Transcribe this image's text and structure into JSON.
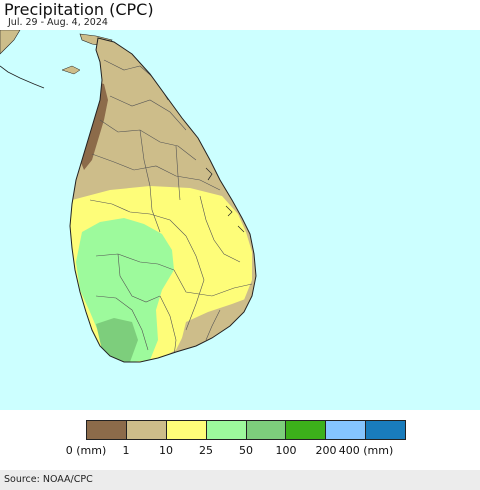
{
  "header": {
    "title": "Precipitation (CPC)",
    "subtitle": "Jul. 29 - Aug. 4, 2024"
  },
  "legend": {
    "colors": [
      "#8c6b4a",
      "#cdbd8a",
      "#fefd79",
      "#9dfa9c",
      "#7dce7c",
      "#3cb01a",
      "#85c5fe",
      "#197cbc"
    ],
    "labels": [
      "0 (mm)",
      "1",
      "10",
      "25",
      "50",
      "100",
      "200",
      "400 (mm)"
    ]
  },
  "map": {
    "ocean_color": "#ccffff",
    "neighbor_land_color": "#cdbd8a"
  },
  "footer": {
    "source": "Source: NOAA/CPC"
  }
}
